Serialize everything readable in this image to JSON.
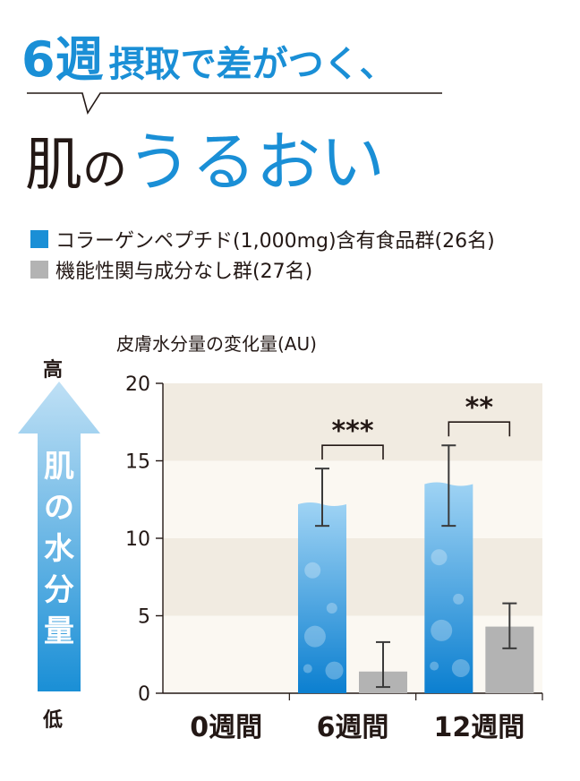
{
  "headline": {
    "weeks": "6週",
    "rest": "摂取で差がつく、"
  },
  "subhead": {
    "dark1": "肌",
    "dark2": "の",
    "blue": "うるおい"
  },
  "legend": [
    {
      "label": "コラーゲンペプチド(1,000mg)含有食品群(26名)",
      "color": "#1a8fd6"
    },
    {
      "label": "機能性関与成分なし群(27名)",
      "color": "#b3b3b3"
    }
  ],
  "arrow": {
    "high": "高",
    "low": "低",
    "label": "肌の水分量",
    "color": "#8cc6ee"
  },
  "chart_data": {
    "type": "bar",
    "ylabel": "皮膚水分量の変化量(AU)",
    "ylim": [
      0,
      20
    ],
    "yticks": [
      "0",
      "5",
      "10",
      "15",
      "20"
    ],
    "categories": [
      "0週間",
      "6週間",
      "12週間"
    ],
    "series": [
      {
        "name": "コラーゲンペプチド(1,000mg)含有食品群(26名)",
        "color": "#1a8fd6",
        "values": [
          0,
          12.2,
          13.5
        ],
        "err_low": [
          0,
          10.8,
          10.8
        ],
        "err_high": [
          0,
          14.5,
          16.0
        ]
      },
      {
        "name": "機能性関与成分なし群(27名)",
        "color": "#b3b3b3",
        "values": [
          0,
          1.4,
          4.3
        ],
        "err_low": [
          0,
          0.4,
          2.9
        ],
        "err_high": [
          0,
          3.3,
          5.8
        ]
      }
    ],
    "significance": [
      {
        "category": "6週間",
        "label": "***"
      },
      {
        "category": "12週間",
        "label": "**"
      }
    ],
    "bands": [
      "#f1ebe1",
      "#fbf8f2"
    ]
  }
}
